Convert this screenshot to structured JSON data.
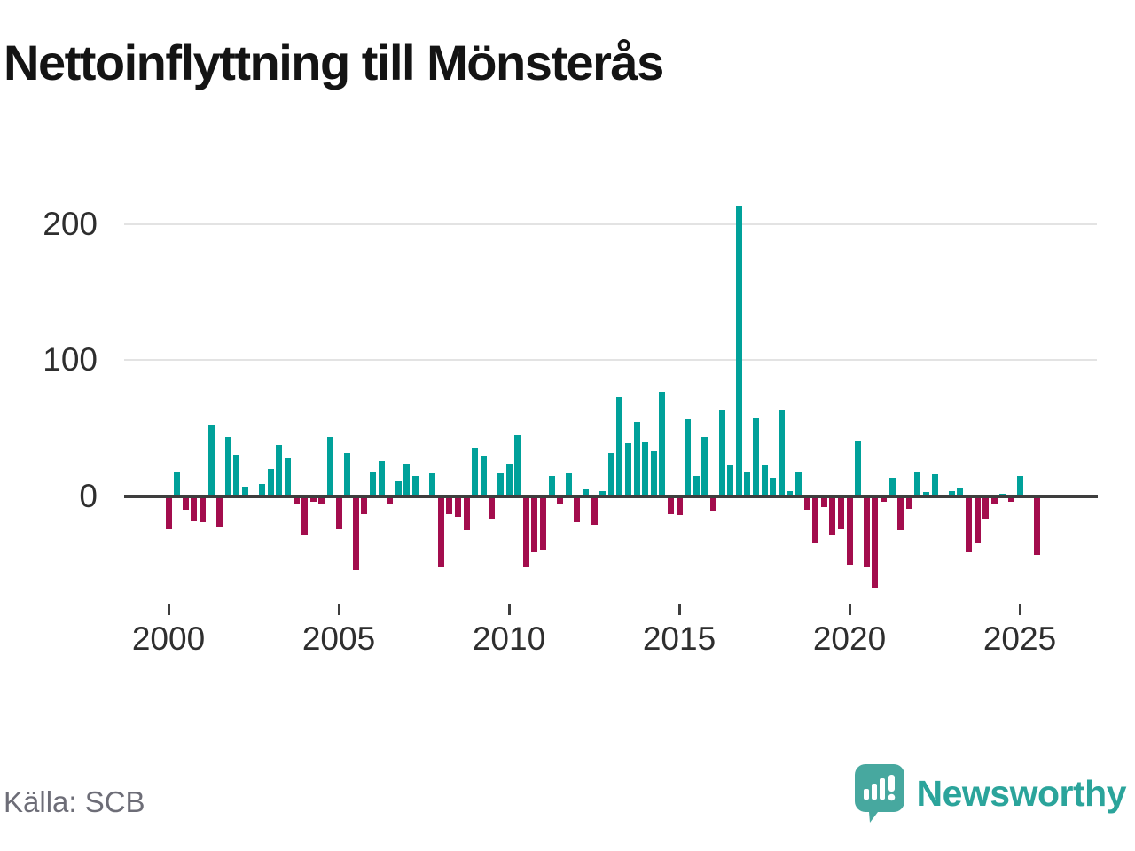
{
  "title": "Nettoinflyttning till Mönsterås",
  "source": "Källa: SCB",
  "branding": {
    "name": "Newsworthy",
    "logo_icon": "speech-bubble-bar-chart-icon"
  },
  "colors": {
    "positive_bar": "#00a19a",
    "negative_bar": "#a30d4d",
    "axis_line": "#3e3e3e",
    "gridline": "#e3e3e3",
    "title_text": "#141414",
    "tick_text": "#2e2e2e",
    "source_text": "#6d6d77",
    "brand_teal": "#2ba49b",
    "brand_bubble": "#47a89f"
  },
  "chart_data": {
    "type": "bar",
    "title": "Nettoinflyttning till Mönsterås",
    "frequency": "quarterly",
    "start_year": 2000,
    "start_quarter": 1,
    "end_year": 2025,
    "end_quarter": 3,
    "x_tick_labels": [
      "2000",
      "2005",
      "2010",
      "2015",
      "2020",
      "2025"
    ],
    "y_tick_labels": [
      "0",
      "100",
      "200"
    ],
    "yticks": [
      0,
      100,
      200
    ],
    "ylim": [
      -75,
      225
    ],
    "grid": "horizontal",
    "legend": "none",
    "positive_color": "#00a19a",
    "negative_color": "#a30d4d",
    "values": [
      -24,
      18,
      -10,
      -18,
      -19,
      53,
      -22,
      44,
      31,
      7,
      0,
      9,
      20,
      38,
      28,
      -6,
      -29,
      -4,
      -5,
      44,
      -24,
      32,
      -54,
      -13,
      18,
      26,
      -6,
      11,
      24,
      15,
      0,
      17,
      -52,
      -13,
      -15,
      -25,
      36,
      30,
      -17,
      17,
      24,
      45,
      -52,
      -41,
      -39,
      15,
      -5,
      17,
      -19,
      5,
      -21,
      4,
      32,
      73,
      39,
      55,
      40,
      33,
      77,
      -13,
      -14,
      57,
      15,
      44,
      -11,
      63,
      23,
      214,
      18,
      58,
      23,
      14,
      63,
      4,
      18,
      -10,
      -34,
      -8,
      -28,
      -24,
      -50,
      41,
      -52,
      -67,
      -4,
      14,
      -25,
      -9,
      18,
      3,
      16,
      0,
      4,
      6,
      -41,
      -34,
      -16,
      -6,
      2,
      -4,
      15,
      0,
      -43
    ]
  }
}
